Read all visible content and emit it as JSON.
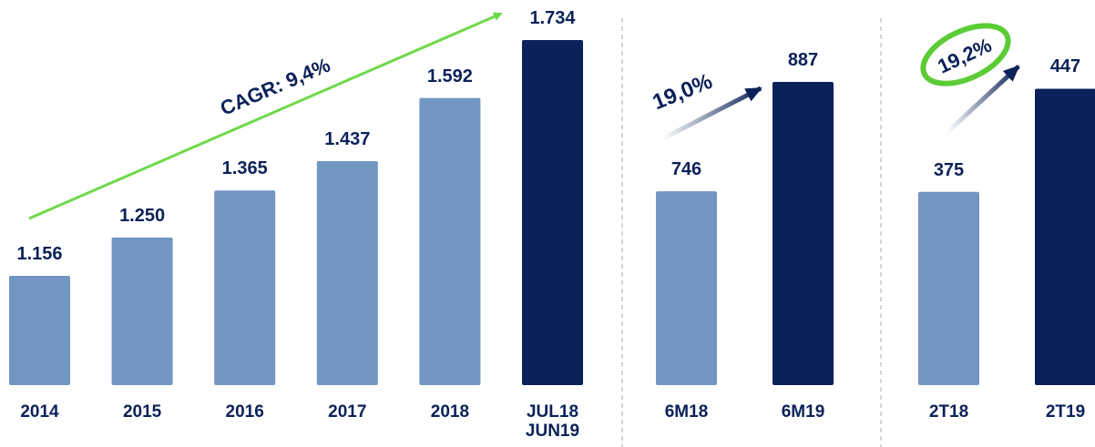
{
  "chart_data": [
    {
      "type": "bar",
      "categories": [
        "2014",
        "2015",
        "2016",
        "2017",
        "2018",
        "JUL18\nJUN19"
      ],
      "values": [
        1156,
        1250,
        1365,
        1437,
        1592,
        1734
      ],
      "value_labels": [
        "1.156",
        "1.250",
        "1.365",
        "1.437",
        "1.592",
        "1.734"
      ],
      "colors": [
        "#7096c1",
        "#7096c1",
        "#7096c1",
        "#7096c1",
        "#7096c1",
        "#0b2159"
      ],
      "ylim": [
        888,
        1734
      ],
      "annotation": "CAGR: 9,4%"
    },
    {
      "type": "bar",
      "categories": [
        "6M18",
        "6M19"
      ],
      "values": [
        746,
        887
      ],
      "colors": [
        "#7096c1",
        "#0b2159"
      ],
      "ylim": [
        496,
        941
      ],
      "annotation": "19,0%"
    },
    {
      "type": "bar",
      "categories": [
        "2T18",
        "2T19"
      ],
      "values": [
        375,
        447
      ],
      "colors": [
        "#7096c1",
        "#0b2159"
      ],
      "ylim": [
        240,
        481
      ],
      "annotation": "19,2%"
    }
  ]
}
